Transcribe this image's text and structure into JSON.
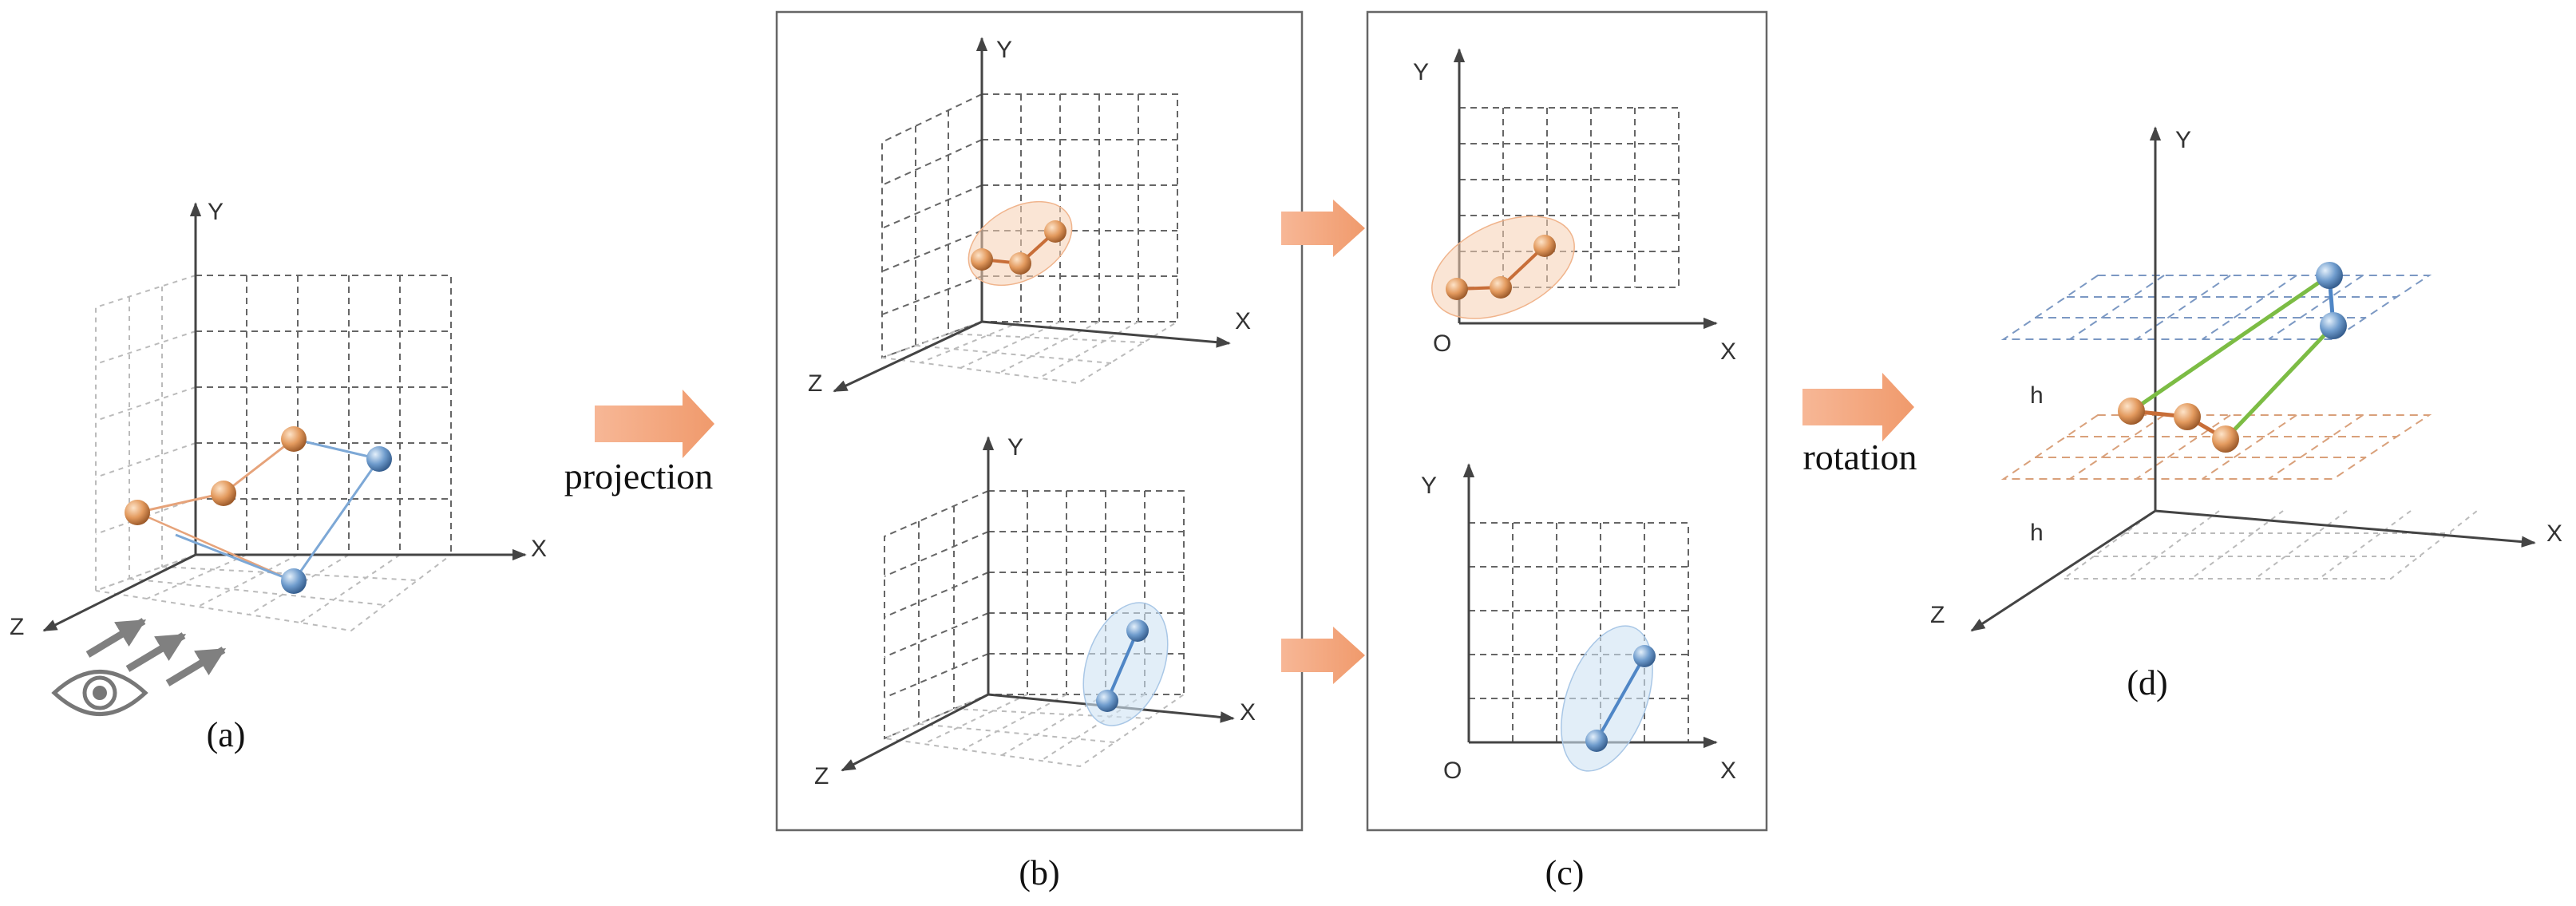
{
  "panels": {
    "a": {
      "label": "(a)",
      "x_axis": "X",
      "y_axis": "Y",
      "z_axis": "Z"
    },
    "b": {
      "label": "(b)",
      "x_axis": "X",
      "y_axis": "Y",
      "z_axis": "Z"
    },
    "c": {
      "label": "(c)",
      "x_axis": "X",
      "y_axis": "Y",
      "origin": "O"
    },
    "d": {
      "label": "(d)",
      "x_axis": "X",
      "y_axis": "Y",
      "z_axis": "Z",
      "height_label": "h"
    }
  },
  "transitions": {
    "projection": "projection",
    "rotation": "rotation"
  },
  "colors": {
    "orange_joint": "#e39a5e",
    "blue_joint": "#6f9ccd",
    "orange_bone": "#c86e38",
    "blue_bone": "#4f86c6",
    "green_link": "#7cbc44",
    "arrow_fill": "#f2a47b",
    "gray_arrow": "#808080"
  },
  "icons": {
    "eye": "eye-icon",
    "view_arrows": "viewing-direction-arrows"
  }
}
